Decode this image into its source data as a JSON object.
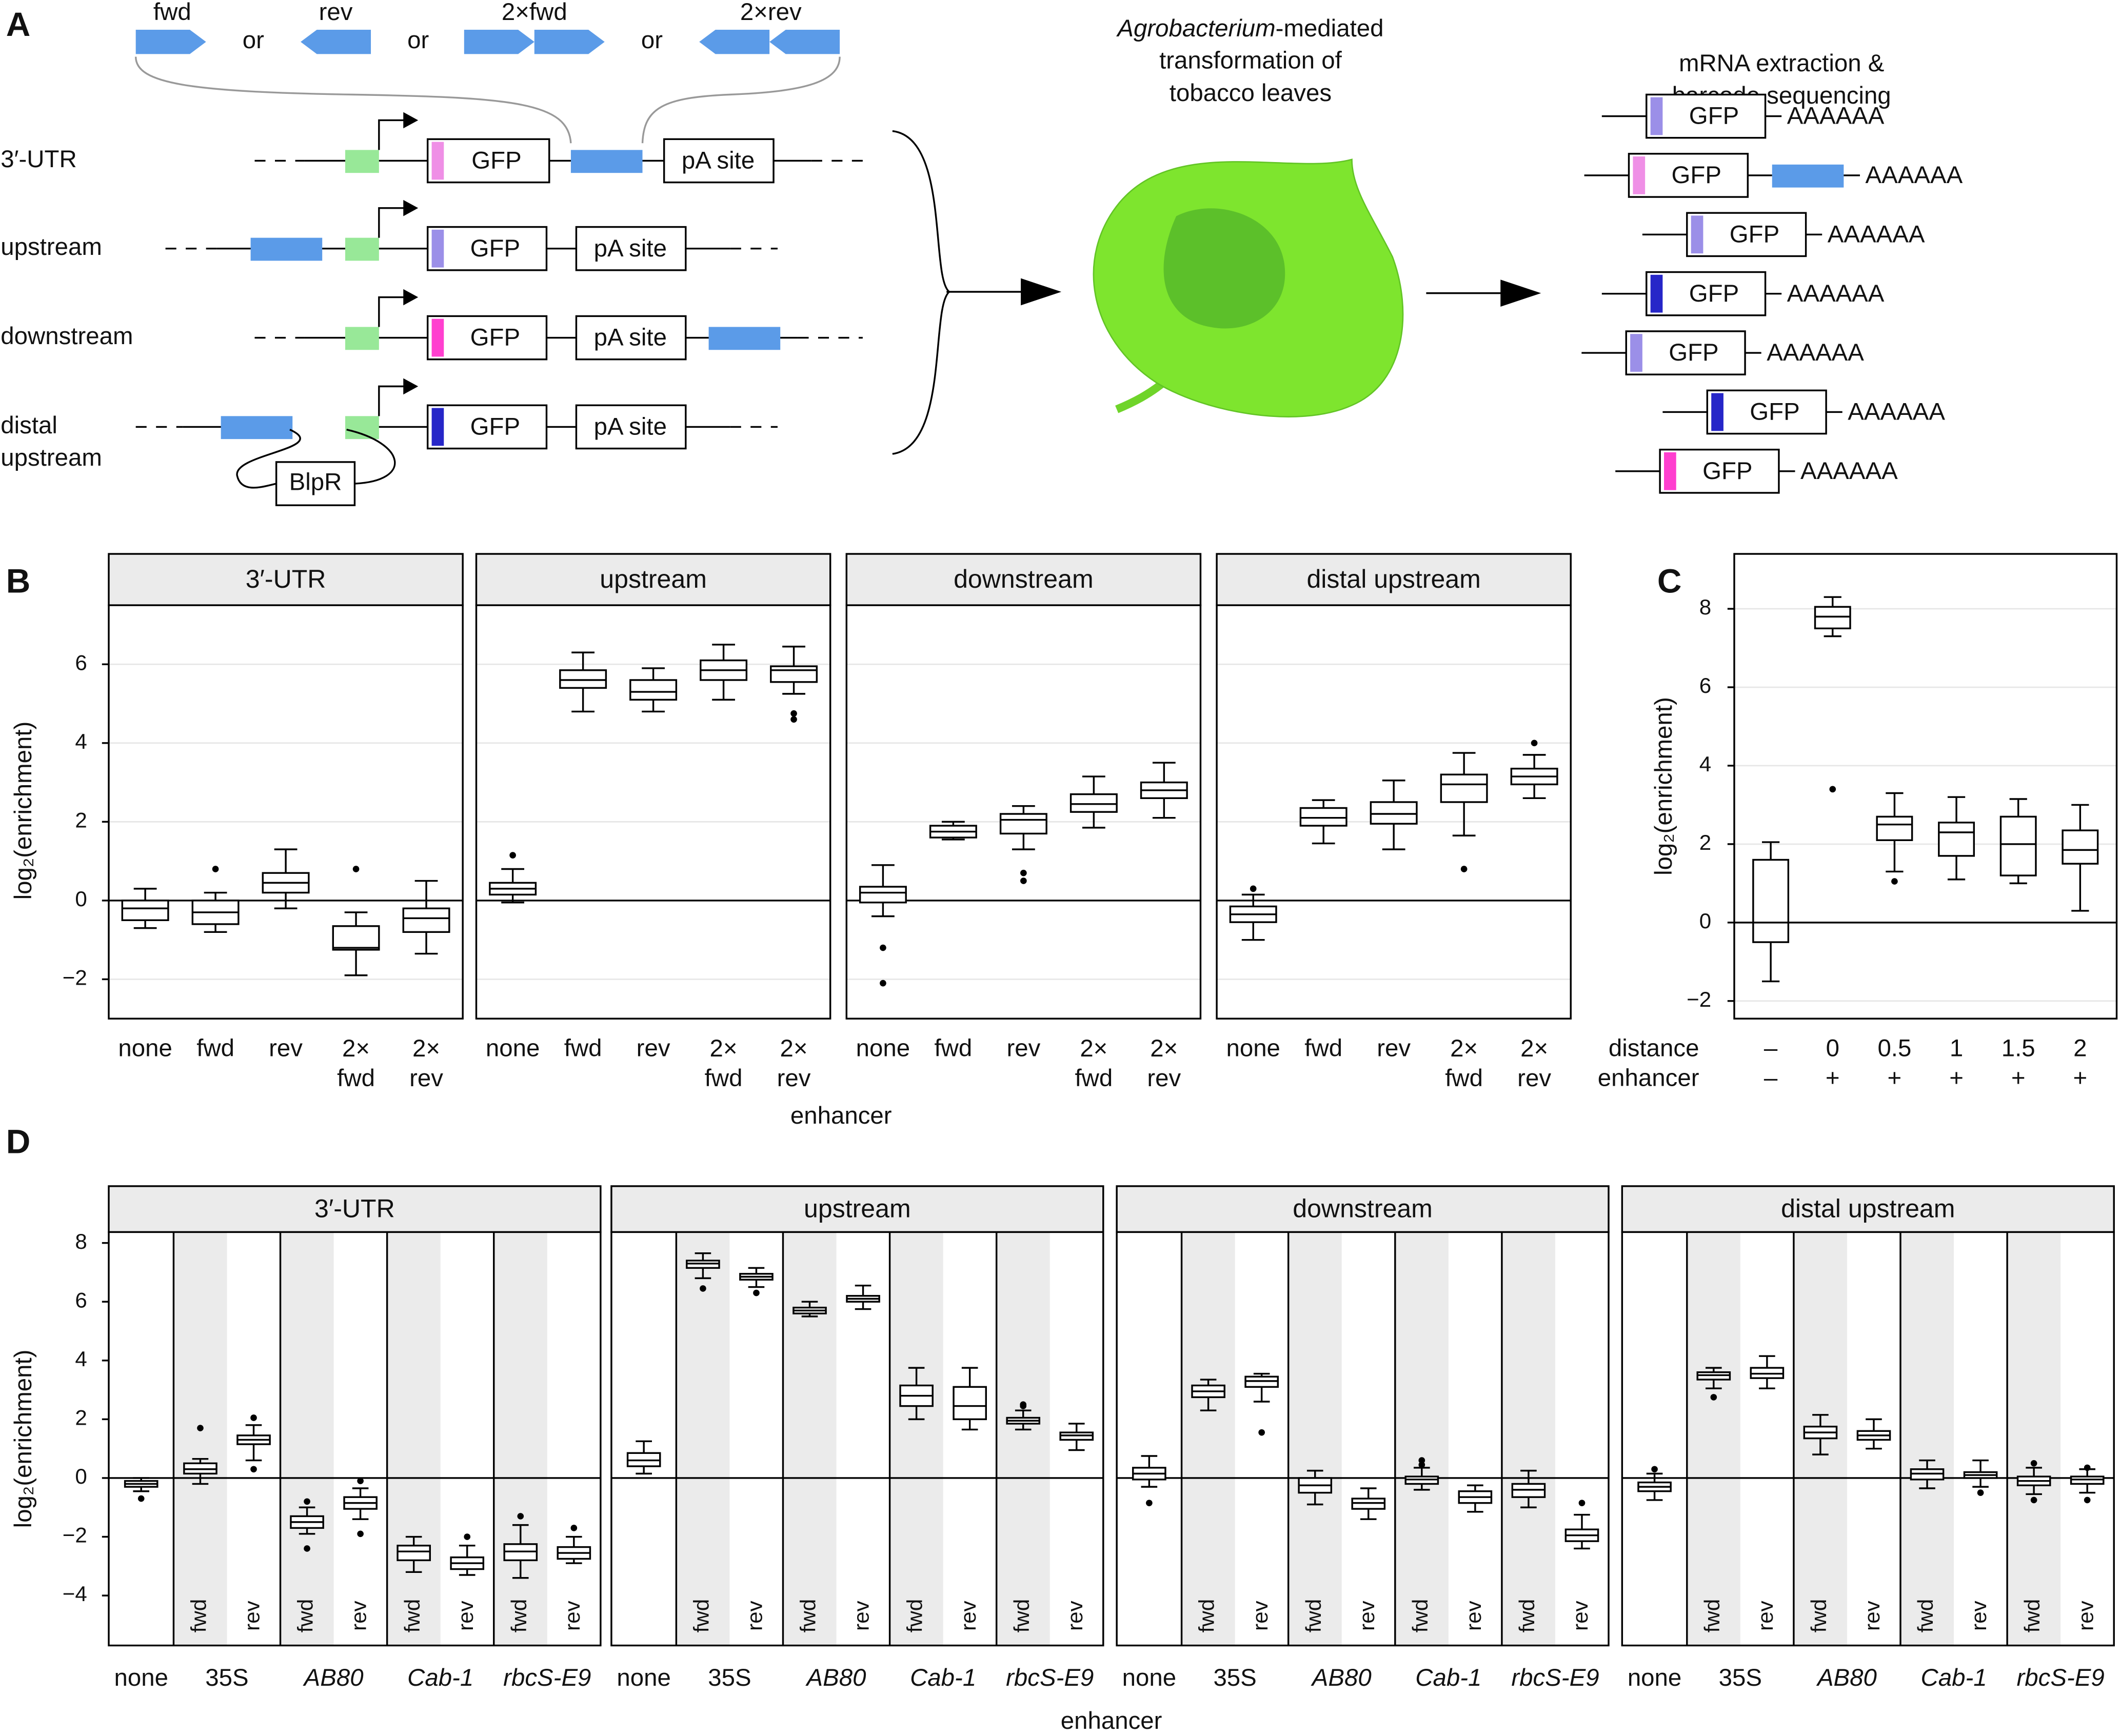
{
  "panel_a": {
    "label": "A",
    "enhancers": [
      "fwd",
      "rev",
      "2×fwd",
      "2×rev"
    ],
    "or": "or",
    "constructs": [
      "3′-UTR",
      "upstream",
      "downstream"
    ],
    "distal": [
      "distal",
      "upstream"
    ],
    "gfp": "GFP",
    "pa_site": "pA site",
    "blpr": "BlpR",
    "agro": "Agrobacterium",
    "transformation": [
      "-mediated",
      "transformation of",
      "tobacco leaves"
    ],
    "extraction": [
      "mRNA extraction &",
      "barcode sequencing"
    ],
    "poly_a": "AAAAAA"
  },
  "chart_data": [
    {
      "type": "box",
      "label": "B",
      "ylabel": "log₂(enrichment)",
      "xlabel": "enhancer",
      "ylim": [
        -3,
        7.5
      ],
      "yticks": [
        {
          "value": -2,
          "label": "−2"
        },
        0,
        2,
        4,
        6
      ],
      "grid": true,
      "hline": 0,
      "categories": [
        "none",
        "fwd",
        "rev",
        "2× fwd",
        "2× rev"
      ],
      "facets": [
        {
          "title": "3′-UTR",
          "boxes": [
            [
              -0.7,
              -0.5,
              -0.2,
              0,
              0.3
            ],
            [
              -0.8,
              -0.6,
              -0.3,
              0,
              0.2
            ],
            [
              -0.2,
              0.2,
              0.45,
              0.7,
              1.3
            ],
            [
              -1.9,
              -1.25,
              -1.2,
              -0.65,
              -0.3
            ],
            [
              -1.35,
              -0.8,
              -0.45,
              -0.2,
              0.5
            ]
          ],
          "outliers": [
            [],
            [
              0.8
            ],
            [],
            [
              0.8
            ],
            []
          ]
        },
        {
          "title": "upstream",
          "boxes": [
            [
              -0.05,
              0.15,
              0.3,
              0.45,
              0.8
            ],
            [
              4.8,
              5.4,
              5.6,
              5.85,
              6.3
            ],
            [
              4.8,
              5.1,
              5.3,
              5.6,
              5.9
            ],
            [
              5.1,
              5.6,
              5.85,
              6.1,
              6.5
            ],
            [
              5.25,
              5.55,
              5.85,
              5.95,
              6.45
            ]
          ],
          "outliers": [
            [
              1.15
            ],
            [],
            [],
            [],
            [
              4.6,
              4.75
            ]
          ]
        },
        {
          "title": "downstream",
          "boxes": [
            [
              -0.4,
              -0.05,
              0.2,
              0.35,
              0.9
            ],
            [
              1.55,
              1.6,
              1.75,
              1.9,
              2.0
            ],
            [
              1.3,
              1.7,
              2.05,
              2.2,
              2.4
            ],
            [
              1.85,
              2.25,
              2.45,
              2.7,
              3.15
            ],
            [
              2.1,
              2.6,
              2.8,
              3.0,
              3.5
            ]
          ],
          "outliers": [
            [
              -1.2,
              -2.1
            ],
            [],
            [
              0.5,
              0.7
            ],
            [],
            []
          ]
        },
        {
          "title": "distal upstream",
          "boxes": [
            [
              -1.0,
              -0.55,
              -0.35,
              -0.15,
              0.15
            ],
            [
              1.45,
              1.9,
              2.1,
              2.35,
              2.55
            ],
            [
              1.3,
              1.95,
              2.2,
              2.5,
              3.05
            ],
            [
              1.65,
              2.5,
              2.95,
              3.2,
              3.75
            ],
            [
              2.6,
              2.95,
              3.15,
              3.35,
              3.7
            ]
          ],
          "outliers": [
            [
              0.3
            ],
            [],
            [],
            [
              0.8
            ],
            [
              4.0
            ]
          ]
        }
      ]
    },
    {
      "type": "box",
      "label": "C",
      "ylabel": "log₂(enrichment)",
      "ylim": [
        -2.45,
        9.4
      ],
      "yticks": [
        {
          "value": -2,
          "label": "−2"
        },
        0,
        2,
        4,
        6,
        8
      ],
      "grid": true,
      "hline": 0,
      "x_rows": [
        {
          "label": "distance",
          "values": [
            "–",
            "0",
            "0.5",
            "1",
            "1.5",
            "2"
          ]
        },
        {
          "label": "enhancer",
          "values": [
            "–",
            "+",
            "+",
            "+",
            "+",
            "+"
          ]
        }
      ],
      "boxes": [
        [
          -1.5,
          -0.5,
          0,
          1.6,
          2.05
        ],
        [
          7.3,
          7.5,
          7.8,
          8.05,
          8.3
        ],
        [
          1.3,
          2.1,
          2.5,
          2.7,
          3.3
        ],
        [
          1.1,
          1.7,
          2.3,
          2.55,
          3.2
        ],
        [
          1.0,
          1.2,
          2.0,
          2.7,
          3.15
        ],
        [
          0.3,
          1.5,
          1.85,
          2.35,
          3.0
        ]
      ],
      "outliers": [
        [],
        [
          3.4
        ],
        [
          1.05
        ],
        [],
        [],
        []
      ]
    },
    {
      "type": "box",
      "label": "D",
      "ylabel": "log₂(enrichment)",
      "xlabel": "enhancer",
      "ylim": [
        -5.7,
        8.37
      ],
      "yticks": [
        {
          "value": -4,
          "label": "−4"
        },
        {
          "value": -2,
          "label": "−2"
        },
        0,
        2,
        4,
        6,
        8
      ],
      "grid": false,
      "hline": 0,
      "groups": [
        "none",
        "35S",
        "AB80",
        "Cab-1",
        "rbcS-E9"
      ],
      "italic_groups": [
        false,
        false,
        true,
        true,
        true
      ],
      "orientations": [
        "fwd",
        "rev"
      ],
      "facets": [
        {
          "title": "3′-UTR",
          "boxes": [
            [
              -0.45,
              -0.3,
              -0.2,
              -0.1,
              0.0
            ],
            [
              -0.2,
              0.15,
              0.3,
              0.5,
              0.65
            ],
            [
              0.6,
              1.15,
              1.3,
              1.45,
              1.8
            ],
            [
              -1.9,
              -1.7,
              -1.5,
              -1.3,
              -1.0
            ],
            [
              -1.4,
              -1.05,
              -0.85,
              -0.65,
              -0.35
            ],
            [
              -3.2,
              -2.8,
              -2.5,
              -2.3,
              -2.0
            ],
            [
              -3.3,
              -3.1,
              -2.9,
              -2.7,
              -2.3
            ],
            [
              -3.4,
              -2.8,
              -2.5,
              -2.25,
              -1.6
            ],
            [
              -2.9,
              -2.75,
              -2.55,
              -2.35,
              -2.0
            ]
          ],
          "outliers": [
            [
              -0.7
            ],
            [
              1.7
            ],
            [
              0.3,
              2.05
            ],
            [
              -0.8,
              -2.4
            ],
            [
              -0.1,
              -1.9
            ],
            [],
            [
              -2.0
            ],
            [
              -1.3
            ],
            [
              -1.7
            ]
          ]
        },
        {
          "title": "upstream",
          "boxes": [
            [
              0.15,
              0.4,
              0.6,
              0.85,
              1.25
            ],
            [
              6.8,
              7.15,
              7.3,
              7.4,
              7.65
            ],
            [
              6.5,
              6.75,
              6.85,
              6.95,
              7.15
            ],
            [
              5.5,
              5.6,
              5.7,
              5.8,
              6.0
            ],
            [
              5.75,
              6.0,
              6.1,
              6.2,
              6.55
            ],
            [
              2.0,
              2.45,
              2.8,
              3.15,
              3.75
            ],
            [
              1.65,
              2.0,
              2.45,
              3.1,
              3.75
            ],
            [
              1.65,
              1.85,
              1.95,
              2.05,
              2.3
            ],
            [
              0.95,
              1.3,
              1.45,
              1.55,
              1.85
            ]
          ],
          "outliers": [
            [],
            [
              6.45
            ],
            [
              6.3
            ],
            [],
            [],
            [],
            [],
            [
              2.45,
              2.5
            ],
            []
          ]
        },
        {
          "title": "downstream",
          "boxes": [
            [
              -0.3,
              -0.05,
              0.15,
              0.35,
              0.75
            ],
            [
              2.3,
              2.75,
              2.95,
              3.15,
              3.35
            ],
            [
              2.6,
              3.1,
              3.3,
              3.45,
              3.55
            ],
            [
              -0.9,
              -0.5,
              -0.25,
              0.0,
              0.25
            ],
            [
              -1.4,
              -1.05,
              -0.85,
              -0.7,
              -0.35
            ],
            [
              -0.4,
              -0.2,
              -0.05,
              0.05,
              0.35
            ],
            [
              -1.15,
              -0.85,
              -0.65,
              -0.45,
              -0.25
            ],
            [
              -1.0,
              -0.65,
              -0.4,
              -0.2,
              0.25
            ],
            [
              -2.4,
              -2.15,
              -1.95,
              -1.75,
              -1.25
            ]
          ],
          "outliers": [
            [
              -0.85
            ],
            [],
            [
              1.55
            ],
            [],
            [],
            [
              0.45,
              0.6
            ],
            [],
            [],
            [
              -0.85
            ]
          ]
        },
        {
          "title": "distal upstream",
          "boxes": [
            [
              -0.75,
              -0.45,
              -0.3,
              -0.15,
              0.15
            ],
            [
              3.05,
              3.35,
              3.5,
              3.6,
              3.75
            ],
            [
              3.05,
              3.4,
              3.55,
              3.75,
              4.15
            ],
            [
              0.8,
              1.35,
              1.55,
              1.75,
              2.15
            ],
            [
              1.0,
              1.3,
              1.45,
              1.6,
              2.0
            ],
            [
              -0.35,
              -0.05,
              0.15,
              0.3,
              0.6
            ],
            [
              -0.3,
              0.0,
              0.1,
              0.2,
              0.6
            ],
            [
              -0.55,
              -0.25,
              -0.1,
              0.05,
              0.35
            ],
            [
              -0.5,
              -0.2,
              -0.05,
              0.05,
              0.3
            ]
          ],
          "outliers": [
            [
              0.3
            ],
            [
              2.75
            ],
            [],
            [],
            [],
            [],
            [
              -0.5
            ],
            [
              -0.75,
              0.5
            ],
            [
              -0.75,
              0.35
            ]
          ]
        }
      ]
    }
  ]
}
